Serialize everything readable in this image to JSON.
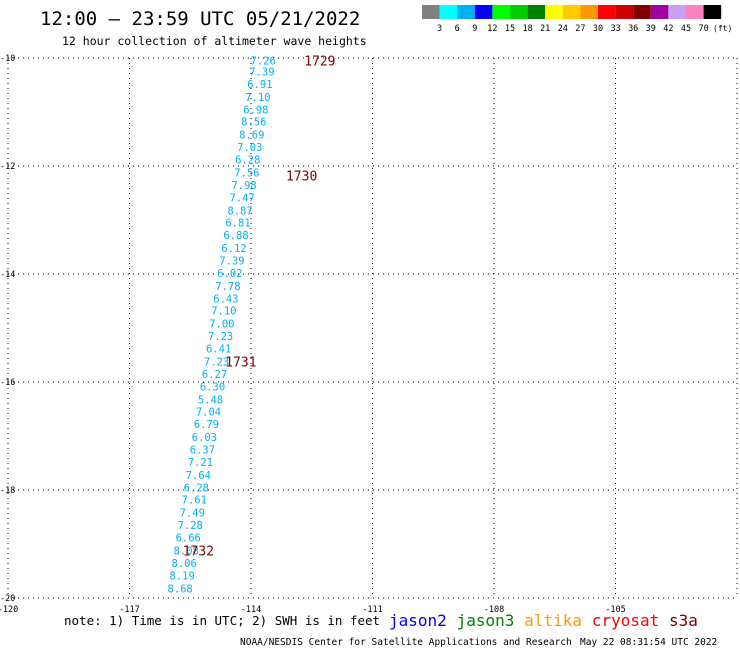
{
  "header": {
    "title": "12:00 — 23:59 UTC 05/21/2022",
    "subtitle": "12 hour collection of altimeter wave heights"
  },
  "colorbar": {
    "colors": [
      "#808080",
      "#00ffff",
      "#00b0f0",
      "#0000ff",
      "#00ff00",
      "#00cc00",
      "#008000",
      "#ffff00",
      "#ffcc00",
      "#ff9900",
      "#ff0000",
      "#cc0000",
      "#800000",
      "#a000a0",
      "#c8a0f0",
      "#ff80c0",
      "#000000"
    ],
    "labels": [
      "3",
      "6",
      "9",
      "12",
      "15",
      "18",
      "21",
      "24",
      "27",
      "30",
      "33",
      "36",
      "39",
      "42",
      "45",
      "70"
    ],
    "unit": "(ft)"
  },
  "chart_data": {
    "type": "scatter",
    "xlim": [
      -120,
      -102
    ],
    "ylim": [
      -20,
      -10
    ],
    "x_ticks": [
      "-120",
      "-117",
      "-114",
      "-111",
      "-108",
      "-105"
    ],
    "y_ticks": [
      "-10",
      "-12",
      "-14",
      "-16",
      "-18",
      "-20"
    ],
    "grid": true,
    "series": [
      {
        "name": "s3a",
        "color": "#00b0f0",
        "points": [
          {
            "lon": -113.7,
            "lat": -10.05,
            "value": "7.26"
          },
          {
            "lon": -113.73,
            "lat": -10.25,
            "value": "7.39"
          },
          {
            "lon": -113.78,
            "lat": -10.48,
            "value": "6.91"
          },
          {
            "lon": -113.83,
            "lat": -10.72,
            "value": "7.10"
          },
          {
            "lon": -113.88,
            "lat": -10.95,
            "value": "6.98"
          },
          {
            "lon": -113.93,
            "lat": -11.18,
            "value": "8.56"
          },
          {
            "lon": -113.98,
            "lat": -11.42,
            "value": "8.69"
          },
          {
            "lon": -114.03,
            "lat": -11.65,
            "value": "7.03"
          },
          {
            "lon": -114.08,
            "lat": -11.88,
            "value": "6.28"
          },
          {
            "lon": -114.1,
            "lat": -12.12,
            "value": "7.56"
          },
          {
            "lon": -114.17,
            "lat": -12.35,
            "value": "7.98"
          },
          {
            "lon": -114.22,
            "lat": -12.58,
            "value": "7.47"
          },
          {
            "lon": -114.27,
            "lat": -12.82,
            "value": "8.87"
          },
          {
            "lon": -114.32,
            "lat": -13.05,
            "value": "6.81"
          },
          {
            "lon": -114.37,
            "lat": -13.28,
            "value": "6.88"
          },
          {
            "lon": -114.42,
            "lat": -13.52,
            "value": "6.12"
          },
          {
            "lon": -114.47,
            "lat": -13.75,
            "value": "7.39"
          },
          {
            "lon": -114.52,
            "lat": -13.98,
            "value": "6.02"
          },
          {
            "lon": -114.57,
            "lat": -14.22,
            "value": "7.78"
          },
          {
            "lon": -114.62,
            "lat": -14.45,
            "value": "6.43"
          },
          {
            "lon": -114.67,
            "lat": -14.68,
            "value": "7.10"
          },
          {
            "lon": -114.72,
            "lat": -14.92,
            "value": "7.00"
          },
          {
            "lon": -114.75,
            "lat": -15.15,
            "value": "7.23"
          },
          {
            "lon": -114.8,
            "lat": -15.38,
            "value": "6.41"
          },
          {
            "lon": -114.85,
            "lat": -15.62,
            "value": "7.23"
          },
          {
            "lon": -114.9,
            "lat": -15.85,
            "value": "6.27"
          },
          {
            "lon": -114.95,
            "lat": -16.08,
            "value": "6.30"
          },
          {
            "lon": -115.0,
            "lat": -16.32,
            "value": "5.48"
          },
          {
            "lon": -115.05,
            "lat": -16.55,
            "value": "7.04"
          },
          {
            "lon": -115.1,
            "lat": -16.78,
            "value": "6.79"
          },
          {
            "lon": -115.15,
            "lat": -17.02,
            "value": "6.03"
          },
          {
            "lon": -115.2,
            "lat": -17.25,
            "value": "6.37"
          },
          {
            "lon": -115.25,
            "lat": -17.48,
            "value": "7.21"
          },
          {
            "lon": -115.3,
            "lat": -17.72,
            "value": "7.64"
          },
          {
            "lon": -115.35,
            "lat": -17.95,
            "value": "6.28"
          },
          {
            "lon": -115.4,
            "lat": -18.18,
            "value": "7.61"
          },
          {
            "lon": -115.45,
            "lat": -18.42,
            "value": "7.49"
          },
          {
            "lon": -115.5,
            "lat": -18.65,
            "value": "7.28"
          },
          {
            "lon": -115.55,
            "lat": -18.88,
            "value": "6.66"
          },
          {
            "lon": -115.6,
            "lat": -19.12,
            "value": "8.08"
          },
          {
            "lon": -115.65,
            "lat": -19.35,
            "value": "8.06"
          },
          {
            "lon": -115.7,
            "lat": -19.58,
            "value": "8.19"
          },
          {
            "lon": -115.75,
            "lat": -19.82,
            "value": "8.68"
          }
        ]
      }
    ],
    "time_labels": [
      {
        "lon": -112.3,
        "lat": -10.05,
        "text": "1729"
      },
      {
        "lon": -112.75,
        "lat": -12.18,
        "text": "1730"
      },
      {
        "lon": -114.25,
        "lat": -15.62,
        "text": "1731"
      },
      {
        "lon": -115.3,
        "lat": -19.12,
        "text": "1732"
      }
    ]
  },
  "footer": {
    "note": "note: 1) Time is in UTC; 2) SWH is in feet",
    "legend": [
      {
        "name": "jason2",
        "color": "#0000ff"
      },
      {
        "name": "jason3",
        "color": "#008000"
      },
      {
        "name": "altika",
        "color": "#ff9900"
      },
      {
        "name": "cryosat",
        "color": "#ff0000"
      },
      {
        "name": "s3a",
        "color": "#800000"
      }
    ],
    "credit": "NOAA/NESDIS Center for Satellite Applications and Research",
    "timestamp": "May 22 08:31:54 UTC 2022"
  }
}
